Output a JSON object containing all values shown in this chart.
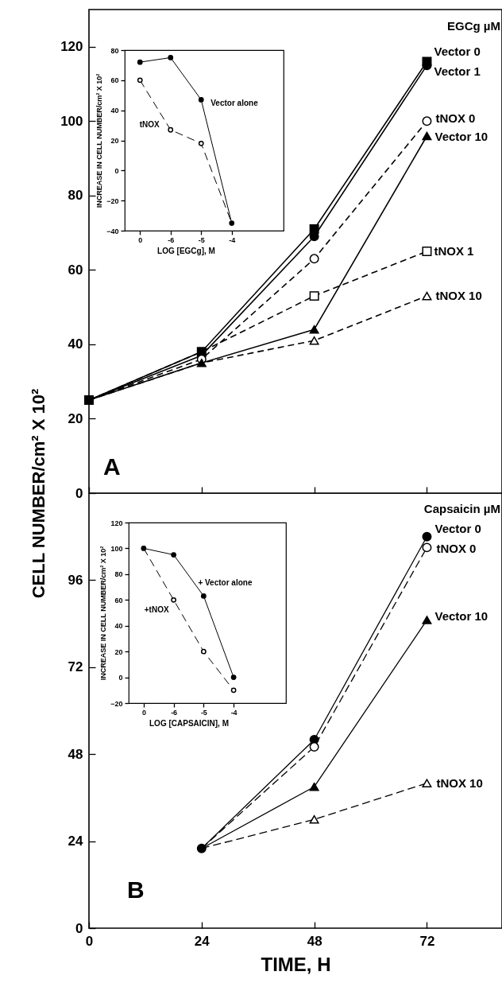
{
  "chart_data": [
    {
      "type": "line",
      "x": [
        0,
        24,
        48,
        72
      ],
      "xlim": [
        0,
        88
      ],
      "xticks": [
        0,
        24,
        48,
        72
      ],
      "ylim": [
        0,
        130
      ],
      "yticks": [
        0,
        20,
        40,
        60,
        80,
        100,
        120
      ],
      "tick_labels": "y",
      "ylabel": "CELL NUMBER/cm² X 10²",
      "legend_title": "EGCg µM",
      "annotations": [
        "A"
      ],
      "series": [
        {
          "name": "Vector 0",
          "color": "#000000",
          "values": [
            25,
            38,
            71,
            116
          ],
          "marker": "square",
          "line_style": "solid"
        },
        {
          "name": "Vector 1",
          "color": "#000000",
          "values": [
            25,
            37,
            69,
            115
          ],
          "marker": "circle",
          "line_style": "solid"
        },
        {
          "name": "tNOX 0",
          "color": "#000000",
          "values": [
            25,
            36,
            63,
            100
          ],
          "marker": "circle",
          "line_style": "dashed"
        },
        {
          "name": "Vector 10",
          "color": "#000000",
          "values": [
            25,
            35,
            44,
            96
          ],
          "marker": "triangle",
          "line_style": "solid"
        },
        {
          "name": "tNOX 1",
          "color": "#000000",
          "values": [
            25,
            38,
            53,
            65
          ],
          "marker": "square",
          "line_style": "dashed"
        },
        {
          "name": "tNOX 10",
          "color": "#000000",
          "values": [
            25,
            35,
            41,
            53
          ],
          "marker": "triangle",
          "line_style": "dashed"
        }
      ]
    },
    {
      "type": "line",
      "categories": [
        "0",
        "-6",
        "-5",
        "-4"
      ],
      "ylim": [
        -40,
        80
      ],
      "yticks": [
        -40,
        -20,
        0,
        20,
        40,
        60,
        80
      ],
      "xlabel": "LOG [EGCg], M",
      "ylabel": "INCREASE IN CELL NUMBER/cm² X 10²",
      "series": [
        {
          "name": "Vector alone",
          "color": "#000000",
          "values": [
            72,
            75,
            47,
            -35
          ],
          "marker": "circle",
          "line_style": "solid"
        },
        {
          "name": "tNOX",
          "color": "#000000",
          "values": [
            60,
            27,
            18,
            -35
          ],
          "marker": "circle",
          "line_style": "dashed"
        }
      ]
    },
    {
      "type": "line",
      "x": [
        24,
        48,
        72
      ],
      "xlim": [
        0,
        88
      ],
      "xticks": [
        0,
        24,
        48,
        72
      ],
      "ylim": [
        0,
        120
      ],
      "yticks": [
        0,
        24,
        48,
        72,
        96
      ],
      "xlabel": "TIME, H",
      "legend_title": "Capsaicin µM",
      "annotations": [
        "B"
      ],
      "series": [
        {
          "name": "Vector 0",
          "color": "#000000",
          "values": [
            22,
            52,
            108
          ],
          "marker": "circle",
          "line_style": "solid"
        },
        {
          "name": "tNOX 0",
          "color": "#000000",
          "values": [
            22,
            50,
            105
          ],
          "marker": "circle",
          "line_style": "dashed"
        },
        {
          "name": "Vector 10",
          "color": "#000000",
          "values": [
            22,
            39,
            85
          ],
          "marker": "triangle",
          "line_style": "solid"
        },
        {
          "name": "tNOX 10",
          "color": "#000000",
          "values": [
            22,
            30,
            40
          ],
          "marker": "triangle",
          "line_style": "dashed"
        }
      ]
    },
    {
      "type": "line",
      "categories": [
        "0",
        "-6",
        "-5",
        "-4"
      ],
      "ylim": [
        -20,
        120
      ],
      "yticks": [
        -20,
        0,
        20,
        40,
        60,
        80,
        100,
        120
      ],
      "xlabel": "LOG [CAPSAICIN],  M",
      "ylabel": "INCREASE IN CELL NUMBER/cm² X 10²",
      "series": [
        {
          "name": "+ Vector alone",
          "color": "#000000",
          "values": [
            100,
            95,
            63,
            0
          ],
          "marker": "circle",
          "line_style": "solid"
        },
        {
          "name": "+tNOX",
          "color": "#000000",
          "values": [
            100,
            60,
            20,
            -10
          ],
          "marker": "circle",
          "line_style": "dashed"
        }
      ]
    }
  ]
}
